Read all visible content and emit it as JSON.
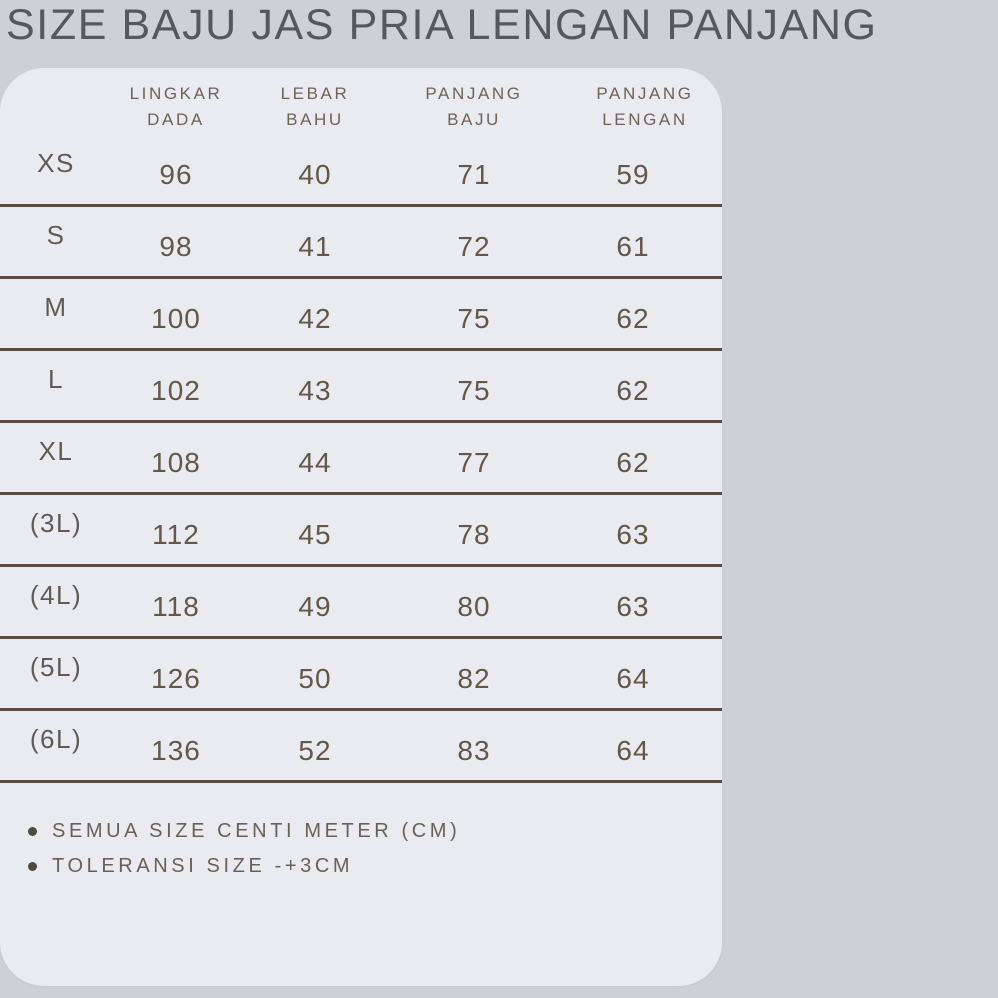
{
  "title": "SIZE BAJU JAS PRIA LENGAN PANJANG",
  "colors": {
    "page_background": "#cdd0d4",
    "panel_background": "#e9ebf0",
    "title_text": "#55585d",
    "header_text": "#6f6257",
    "cell_text": "#645749",
    "divider_line": "#594c42",
    "note_text": "#6b6055"
  },
  "chart_data": {
    "type": "table",
    "title": "SIZE BAJU JAS PRIA LENGAN PANJANG",
    "columns": [
      "LINGKAR DADA",
      "LEBAR BAHU",
      "PANJANG BAJU",
      "PANJANG LENGAN"
    ],
    "rows": [
      [
        "XS",
        96,
        40,
        71,
        59
      ],
      [
        "S",
        98,
        41,
        72,
        61
      ],
      [
        "M",
        100,
        42,
        75,
        62
      ],
      [
        "L",
        102,
        43,
        75,
        62
      ],
      [
        "XL",
        108,
        44,
        77,
        62
      ],
      [
        "(3L)",
        112,
        45,
        78,
        63
      ],
      [
        "(4L)",
        118,
        49,
        80,
        63
      ],
      [
        "(5L)",
        126,
        50,
        82,
        64
      ],
      [
        "(6L)",
        136,
        52,
        83,
        64
      ]
    ],
    "unit": "CM",
    "notes": [
      "SEMUA SIZE CENTI METER (CM)",
      "TOLERANSI SIZE -+3CM"
    ]
  }
}
